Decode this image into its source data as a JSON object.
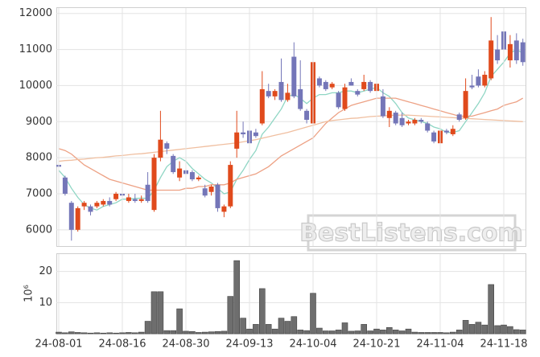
{
  "chart_data": [
    {
      "type": "candlestick",
      "open": [
        7800,
        7450,
        6750,
        6000,
        6650,
        6650,
        6650,
        6700,
        6800,
        6850,
        7000,
        6800,
        6850,
        6800,
        7250,
        6550,
        8000,
        8400,
        8050,
        7450,
        7650,
        7600,
        7400,
        7150,
        7050,
        7250,
        6500,
        6650,
        8250,
        8700,
        8750,
        8700,
        8950,
        9850,
        9700,
        10100,
        9600,
        10800,
        9900,
        9300,
        8950,
        10200,
        10100,
        9950,
        9800,
        9350,
        10100,
        9850,
        9900,
        10100,
        9850,
        9700,
        9100,
        9250,
        9100,
        8950,
        8950,
        9050,
        8950,
        8700,
        8400,
        8750,
        8650,
        9200,
        9100,
        10000,
        10250,
        10000,
        10200,
        11000,
        11500,
        10700,
        11250,
        11200
      ],
      "high": [
        7950,
        7500,
        6800,
        6650,
        6800,
        6700,
        6800,
        6850,
        6900,
        7050,
        7100,
        7000,
        7000,
        6950,
        7600,
        8100,
        9300,
        8450,
        8100,
        7900,
        7950,
        7650,
        7500,
        7250,
        7250,
        7300,
        6700,
        7900,
        9300,
        9000,
        8800,
        8800,
        10400,
        10050,
        9900,
        10750,
        10050,
        11200,
        10700,
        9350,
        10700,
        10250,
        10150,
        10100,
        9850,
        10050,
        10200,
        9900,
        10300,
        10150,
        10300,
        9900,
        9400,
        9300,
        9250,
        9050,
        9100,
        9100,
        9000,
        8750,
        8800,
        8800,
        8900,
        9250,
        10200,
        10300,
        10450,
        10400,
        11900,
        11400,
        11600,
        11400,
        11450,
        11300
      ],
      "low": [
        7700,
        6950,
        5700,
        5950,
        6550,
        6400,
        6600,
        6650,
        6650,
        6800,
        6850,
        6750,
        6750,
        6750,
        6750,
        6500,
        7900,
        8100,
        7550,
        7350,
        7450,
        7350,
        7350,
        6900,
        6950,
        6500,
        6350,
        6600,
        8000,
        8550,
        8300,
        8550,
        8900,
        9650,
        9600,
        9550,
        9550,
        9650,
        9300,
        8950,
        8800,
        9950,
        9850,
        9900,
        9350,
        9300,
        10000,
        9700,
        9850,
        9800,
        9800,
        9100,
        8850,
        8900,
        8850,
        8900,
        8900,
        8950,
        8700,
        8400,
        8350,
        8650,
        8600,
        9000,
        9050,
        9900,
        9950,
        9950,
        10150,
        10600,
        10800,
        10500,
        10600,
        10550
      ],
      "close": [
        7750,
        7000,
        6000,
        6600,
        6750,
        6500,
        6750,
        6800,
        6700,
        7000,
        6950,
        6900,
        6800,
        6850,
        6800,
        8000,
        8500,
        8250,
        7600,
        7700,
        7550,
        7400,
        7450,
        6950,
        7200,
        6600,
        6650,
        7800,
        8700,
        8650,
        8400,
        8600,
        9900,
        9700,
        9850,
        9600,
        9800,
        9700,
        9350,
        9050,
        10650,
        10000,
        9900,
        10050,
        9400,
        9950,
        10000,
        9750,
        10100,
        9850,
        10050,
        9150,
        9300,
        8950,
        8900,
        9000,
        9050,
        9000,
        8750,
        8450,
        8750,
        8700,
        8800,
        9050,
        9850,
        9950,
        10000,
        10300,
        11250,
        10700,
        11000,
        11150,
        10700,
        10650
      ],
      "up_color": "#e04a1c",
      "down_color": "#7476b8",
      "lines": [
        {
          "color": "#8fd6c4",
          "values": [
            7650,
            7450,
            7150,
            6900,
            6700,
            6600,
            6550,
            6650,
            6700,
            6750,
            6850,
            6850,
            6870,
            6880,
            6870,
            7100,
            7450,
            7750,
            7900,
            8000,
            7900,
            7700,
            7550,
            7400,
            7300,
            7150,
            7000,
            7050,
            7400,
            7650,
            7950,
            8200,
            8650,
            8850,
            9100,
            9350,
            9700,
            9750,
            9650,
            9500,
            9650,
            9750,
            9750,
            9800,
            9800,
            9850,
            9850,
            9800,
            9850,
            9900,
            9950,
            9800,
            9700,
            9500,
            9250,
            9100,
            9050,
            9000,
            8950,
            8850,
            8800,
            8700,
            8700,
            8750,
            9000,
            9250,
            9500,
            9800,
            10250,
            10450,
            10650,
            10900,
            11000,
            10900
          ]
        },
        {
          "color": "#eda184",
          "values": [
            8250,
            8200,
            8100,
            7950,
            7800,
            7700,
            7600,
            7500,
            7400,
            7350,
            7300,
            7250,
            7200,
            7150,
            7100,
            7100,
            7100,
            7100,
            7100,
            7100,
            7150,
            7150,
            7200,
            7200,
            7250,
            7250,
            7250,
            7300,
            7400,
            7450,
            7500,
            7550,
            7650,
            7750,
            7900,
            8050,
            8150,
            8250,
            8350,
            8450,
            8550,
            8750,
            8950,
            9100,
            9250,
            9350,
            9450,
            9500,
            9550,
            9600,
            9650,
            9650,
            9650,
            9650,
            9600,
            9550,
            9500,
            9450,
            9400,
            9350,
            9300,
            9250,
            9200,
            9150,
            9150,
            9150,
            9200,
            9250,
            9300,
            9350,
            9450,
            9500,
            9550,
            9650
          ]
        },
        {
          "color": "#f0bfa0",
          "values": [
            7900,
            7920,
            7930,
            7950,
            7960,
            7980,
            8000,
            8010,
            8030,
            8050,
            8060,
            8080,
            8100,
            8110,
            8130,
            8150,
            8170,
            8190,
            8210,
            8230,
            8250,
            8270,
            8290,
            8310,
            8330,
            8350,
            8370,
            8390,
            8410,
            8440,
            8470,
            8500,
            8540,
            8580,
            8620,
            8660,
            8700,
            8750,
            8800,
            8850,
            8900,
            8950,
            9000,
            9030,
            9050,
            9070,
            9090,
            9100,
            9120,
            9140,
            9150,
            9160,
            9170,
            9180,
            9180,
            9180,
            9170,
            9160,
            9150,
            9140,
            9130,
            9120,
            9110,
            9100,
            9090,
            9080,
            9070,
            9060,
            9050,
            9040,
            9030,
            9020,
            9010,
            9000
          ]
        }
      ],
      "ylim": [
        5550,
        12150
      ],
      "yticks": [
        6000,
        7000,
        8000,
        9000,
        10000,
        11000,
        12000
      ],
      "grid": true,
      "watermark": "BestListens.com"
    },
    {
      "type": "bar",
      "categories": [
        "24-08-01",
        null,
        null,
        null,
        null,
        null,
        null,
        null,
        null,
        null,
        "24-08-16",
        null,
        null,
        null,
        null,
        null,
        null,
        null,
        null,
        null,
        "24-08-30",
        null,
        null,
        null,
        null,
        null,
        null,
        null,
        null,
        null,
        "24-09-13",
        null,
        null,
        null,
        null,
        null,
        null,
        null,
        null,
        null,
        "24-10-04",
        null,
        null,
        null,
        null,
        null,
        null,
        null,
        null,
        null,
        "24-10-21",
        null,
        null,
        null,
        null,
        null,
        null,
        null,
        null,
        null,
        "24-11-04",
        null,
        null,
        null,
        null,
        null,
        null,
        null,
        null,
        null,
        "24-11-18",
        null,
        null,
        null
      ],
      "values": [
        0.5,
        0.3,
        0.6,
        0.4,
        0.3,
        0.2,
        0.3,
        0.2,
        0.3,
        0.2,
        0.3,
        0.4,
        0.3,
        0.5,
        4,
        13.5,
        13.5,
        1,
        1,
        8,
        0.8,
        0.7,
        0.4,
        0.5,
        0.6,
        0.7,
        0.8,
        12,
        23.5,
        5,
        1.5,
        3,
        14.5,
        3,
        1.5,
        5,
        4,
        5.5,
        1.2,
        1,
        13,
        1.8,
        0.9,
        0.9,
        1.2,
        3.5,
        0.8,
        0.9,
        3,
        0.9,
        1.5,
        1.2,
        2,
        1.2,
        0.9,
        1.5,
        0.5,
        0.4,
        0.4,
        0.4,
        0.4,
        0.3,
        0.5,
        1.2,
        4.3,
        3,
        3.7,
        2.8,
        15.8,
        2.6,
        2.8,
        2.3,
        1.3,
        1.2
      ],
      "color": "#6e6e6e",
      "y_label": "10⁶",
      "ylim": [
        0,
        25.6
      ],
      "yticks": [
        10,
        20
      ],
      "grid": true
    }
  ]
}
